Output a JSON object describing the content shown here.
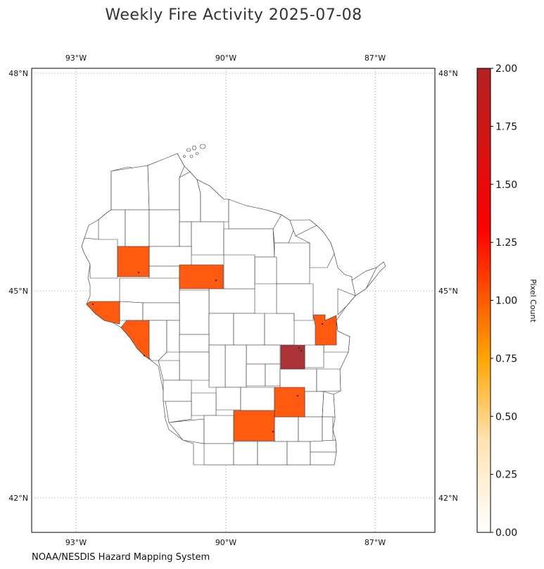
{
  "title": "Weekly Fire Activity 2025-07-08",
  "source": "NOAA/NESDIS Hazard Mapping System",
  "map": {
    "lon_ticks": [
      "93°W",
      "90°W",
      "87°W"
    ],
    "lat_ticks": [
      "48°N",
      "45°N",
      "42°N"
    ],
    "grid": true,
    "county_outline_color": "#333333",
    "background_color": "#ffffff"
  },
  "colorbar": {
    "label": "Pixel Count",
    "min": 0,
    "max": 2,
    "ticks": [
      "0.00",
      "0.25",
      "0.50",
      "0.75",
      "1.00",
      "1.25",
      "1.50",
      "1.75",
      "2.00"
    ],
    "colors": [
      "#ffffff",
      "#ffe2b0",
      "#ffa500",
      "#ff5a00",
      "#ff0000",
      "#b22222"
    ]
  },
  "fire_counties": [
    {
      "name": "Barron",
      "count": 1,
      "color": "#ff5a0f"
    },
    {
      "name": "Lincoln",
      "count": 1,
      "color": "#ff5a0f"
    },
    {
      "name": "St. Croix",
      "count": 1,
      "color": "#ff5a0f"
    },
    {
      "name": "Pierce",
      "count": 1,
      "color": "#ff5a0f"
    },
    {
      "name": "Brown",
      "count": 1,
      "color": "#ff5a0f"
    },
    {
      "name": "Winnebago",
      "count": 2,
      "color": "#ab3237"
    },
    {
      "name": "Dodge",
      "count": 1,
      "color": "#ff5a0f"
    },
    {
      "name": "Dane",
      "count": 1,
      "color": "#ff5a0f"
    }
  ]
}
